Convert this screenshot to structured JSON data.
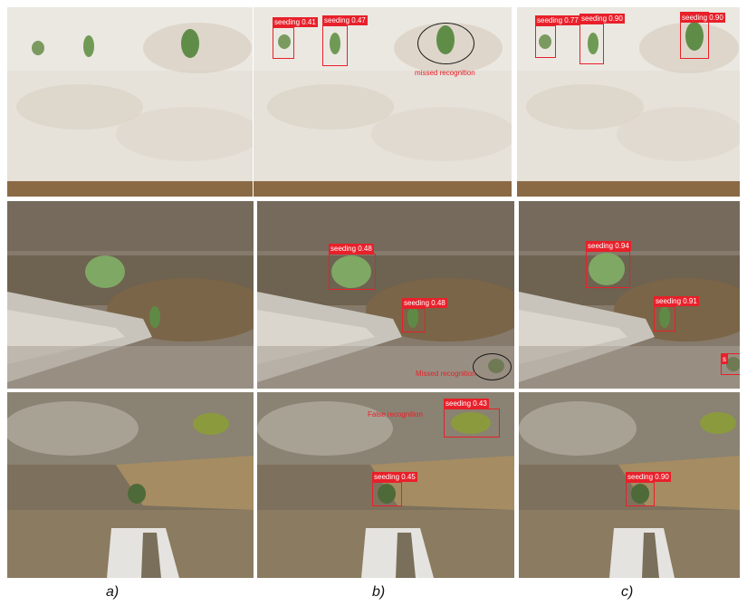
{
  "captions": [
    "a)",
    "b)",
    "c)"
  ],
  "rows": [
    {
      "b": {
        "detections": [
          {
            "label": "seeding 0.41"
          },
          {
            "label": "seeding 0.47"
          }
        ],
        "annotation": "missed recognition"
      },
      "c": {
        "detections": [
          {
            "label": "seeding 0.77"
          },
          {
            "label": "seeding 0.90"
          },
          {
            "label": "seeding 0.90"
          }
        ]
      }
    },
    {
      "b": {
        "detections": [
          {
            "label": "seeding 0.48"
          },
          {
            "label": "seeding 0.48"
          }
        ],
        "annotation": "Missed recognition"
      },
      "c": {
        "detections": [
          {
            "label": "seeding 0.94"
          },
          {
            "label": "seeding 0.91"
          },
          {
            "label": "s"
          }
        ]
      }
    },
    {
      "b": {
        "detections": [
          {
            "label": "seeding 0.43"
          },
          {
            "label": "seeding 0.45"
          }
        ],
        "annotation": "False recognition"
      },
      "c": {
        "detections": [
          {
            "label": "seeding 0.90"
          }
        ]
      }
    }
  ],
  "colors": {
    "detection_box": "#e8202a",
    "annotation_text": "#e8202a",
    "ellipse": "#1a1a1a",
    "film_light": "#e9e6df",
    "soil_dark": "#6e6250",
    "soil_brown": "#8a7050",
    "seedling": "#6f9a55"
  }
}
